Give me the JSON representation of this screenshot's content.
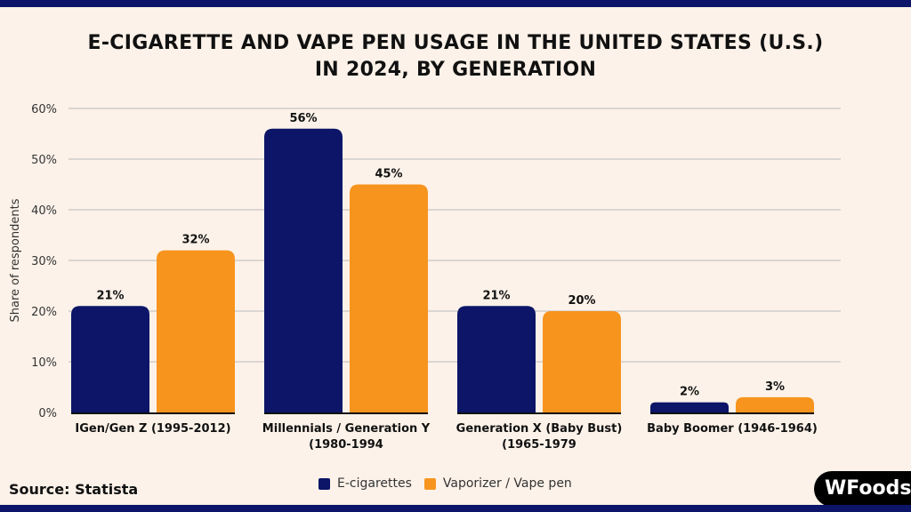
{
  "title_lines": [
    "E-CIGARETTE AND VAPE PEN USAGE IN THE UNITED STATES (U.S.)",
    "IN 2024, BY GENERATION"
  ],
  "source": "Source: Statista",
  "logo_text": "WFoods",
  "colors": {
    "e_cigarettes": "#0c1567",
    "vape_pen": "#f7941d",
    "background": "#fcf2e9"
  },
  "chart_data": {
    "type": "bar",
    "title": "E-CIGARETTE AND VAPE PEN USAGE IN THE UNITED STATES (U.S.) IN 2024, BY GENERATION",
    "categories": [
      [
        "IGen/Gen Z (1995-2012)"
      ],
      [
        "Millennials / Generation Y",
        "(1980-1994"
      ],
      [
        "Generation X (Baby Bust)",
        "(1965-1979"
      ],
      [
        "Baby Boomer (1946-1964)"
      ]
    ],
    "series": [
      {
        "name": "E-cigarettes",
        "values": [
          21,
          56,
          21,
          2
        ],
        "labels": [
          "21%",
          "56%",
          "21%",
          "2%"
        ]
      },
      {
        "name": "Vaporizer / Vape pen",
        "values": [
          32,
          45,
          20,
          3
        ],
        "labels": [
          "32%",
          "45%",
          "20%",
          "3%"
        ]
      }
    ],
    "ylabel": "Share of respondents",
    "xlabel": "",
    "ylim": [
      0,
      60
    ],
    "yticks": [
      "0%",
      "10%",
      "20%",
      "30%",
      "40%",
      "50%",
      "60%"
    ],
    "grid": true,
    "legend": "bottom-center"
  }
}
